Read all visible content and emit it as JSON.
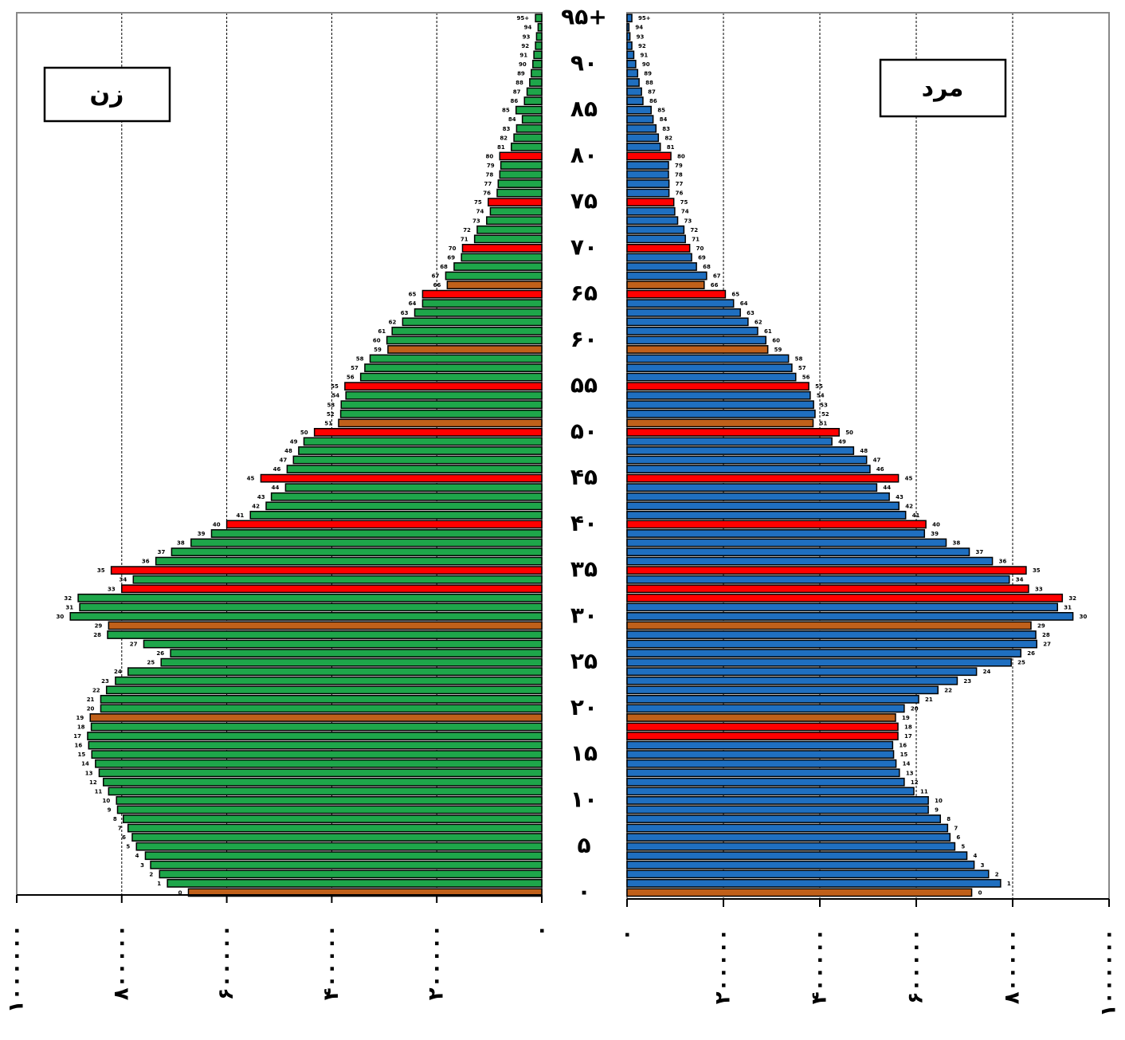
{
  "chart_data": {
    "type": "bar",
    "title": "",
    "xlabel": "",
    "ylabel": "",
    "age_labels": [
      "0",
      "1",
      "2",
      "3",
      "4",
      "5",
      "6",
      "7",
      "8",
      "9",
      "10",
      "11",
      "12",
      "13",
      "14",
      "15",
      "16",
      "17",
      "18",
      "19",
      "20",
      "21",
      "22",
      "23",
      "24",
      "25",
      "26",
      "27",
      "28",
      "29",
      "30",
      "31",
      "32",
      "33",
      "34",
      "35",
      "36",
      "37",
      "38",
      "39",
      "40",
      "41",
      "42",
      "43",
      "44",
      "45",
      "46",
      "47",
      "48",
      "49",
      "50",
      "51",
      "52",
      "53",
      "54",
      "55",
      "56",
      "57",
      "58",
      "59",
      "60",
      "61",
      "62",
      "63",
      "64",
      "65",
      "66",
      "67",
      "68",
      "69",
      "70",
      "71",
      "72",
      "73",
      "74",
      "75",
      "76",
      "77",
      "78",
      "79",
      "80",
      "81",
      "82",
      "83",
      "84",
      "85",
      "86",
      "87",
      "88",
      "89",
      "90",
      "91",
      "92",
      "93",
      "94",
      "95+"
    ],
    "major_age_ticks": [
      {
        "age": 0,
        "label": "۰"
      },
      {
        "age": 5,
        "label": "۵"
      },
      {
        "age": 10,
        "label": "۱۰"
      },
      {
        "age": 15,
        "label": "۱۵"
      },
      {
        "age": 20,
        "label": "۲۰"
      },
      {
        "age": 25,
        "label": "۲۵"
      },
      {
        "age": 30,
        "label": "۳۰"
      },
      {
        "age": 35,
        "label": "۳۵"
      },
      {
        "age": 40,
        "label": "۴۰"
      },
      {
        "age": 45,
        "label": "۴۵"
      },
      {
        "age": 50,
        "label": "۵۰"
      },
      {
        "age": 55,
        "label": "۵۵"
      },
      {
        "age": 60,
        "label": "۶۰"
      },
      {
        "age": 65,
        "label": "۶۵"
      },
      {
        "age": 70,
        "label": "۷۰"
      },
      {
        "age": 75,
        "label": "۷۵"
      },
      {
        "age": 80,
        "label": "۸۰"
      },
      {
        "age": 85,
        "label": "۸۵"
      },
      {
        "age": 90,
        "label": "۹۰"
      },
      {
        "age": 95,
        "label": "۹۵+"
      }
    ],
    "xlim": [
      0,
      1000000
    ],
    "value_ticks": [
      {
        "value": 0,
        "label": "۰"
      },
      {
        "value": 200000,
        "label": "۲۰۰۰۰۰"
      },
      {
        "value": 400000,
        "label": "۴۰۰۰۰۰"
      },
      {
        "value": 600000,
        "label": "۶۰۰۰۰۰"
      },
      {
        "value": 800000,
        "label": "۸۰۰۰۰۰"
      },
      {
        "value": 1000000,
        "label": "۱۰۰۰۰۰۰"
      }
    ],
    "grid": true,
    "colors": {
      "male": "#1f6fc0",
      "female": "#1ea64a",
      "heap_red": "#ff0000",
      "heap_brown": "#c0601a",
      "outline": "#000000",
      "grid": "#000000"
    },
    "highlights": {
      "male": {
        "red": [
          17,
          18,
          32,
          33,
          35,
          40,
          45,
          50,
          55,
          65,
          70,
          75,
          80
        ],
        "brown": [
          0,
          19,
          29,
          51,
          59,
          66
        ]
      },
      "female": {
        "red": [
          33,
          35,
          40,
          45,
          50,
          55,
          65,
          70,
          75,
          80
        ],
        "brown": [
          0,
          19,
          29,
          51,
          59,
          66
        ]
      }
    },
    "series": [
      {
        "name": "مرد",
        "values": [
          715000,
          775000,
          750000,
          720000,
          705000,
          680000,
          670000,
          665000,
          650000,
          625000,
          625000,
          595000,
          575000,
          565000,
          558000,
          553000,
          551000,
          562000,
          562000,
          557000,
          575000,
          605000,
          645000,
          685000,
          725000,
          797000,
          817000,
          850000,
          848000,
          838000,
          925000,
          893000,
          903000,
          833000,
          793000,
          828000,
          758000,
          710000,
          662000,
          617000,
          620000,
          578000,
          564000,
          544000,
          518000,
          563000,
          504000,
          497000,
          470000,
          425000,
          440000,
          386000,
          390000,
          387000,
          380000,
          377000,
          350000,
          342000,
          335000,
          292000,
          288000,
          271000,
          251000,
          235000,
          221000,
          204000,
          160000,
          165000,
          144000,
          134000,
          130000,
          121000,
          118000,
          105000,
          99000,
          97000,
          87000,
          87000,
          86000,
          86000,
          91000,
          69000,
          65000,
          60000,
          54000,
          50000,
          33000,
          30000,
          25000,
          22000,
          18000,
          14000,
          10000,
          6000,
          4000,
          10000
        ]
      },
      {
        "name": "زن",
        "values": [
          673000,
          713000,
          728000,
          745000,
          755000,
          772000,
          780000,
          788000,
          797000,
          808000,
          810000,
          825000,
          835000,
          843000,
          850000,
          857000,
          863000,
          865000,
          858000,
          860000,
          840000,
          840000,
          829000,
          812000,
          788000,
          725000,
          707000,
          758000,
          827000,
          825000,
          898000,
          880000,
          883000,
          800000,
          778000,
          820000,
          735000,
          705000,
          668000,
          629000,
          600000,
          555000,
          525000,
          515000,
          488000,
          535000,
          485000,
          473000,
          463000,
          453000,
          433000,
          387000,
          383000,
          382000,
          373000,
          375000,
          345000,
          337000,
          327000,
          293000,
          295000,
          285000,
          265000,
          242000,
          227000,
          227000,
          180000,
          183000,
          167000,
          153000,
          151000,
          128000,
          123000,
          105000,
          98000,
          102000,
          85000,
          83000,
          80000,
          78000,
          80000,
          58000,
          53000,
          48000,
          37000,
          49000,
          33000,
          28000,
          23000,
          20000,
          17000,
          15000,
          12000,
          10000,
          7000,
          12000
        ]
      }
    ]
  }
}
